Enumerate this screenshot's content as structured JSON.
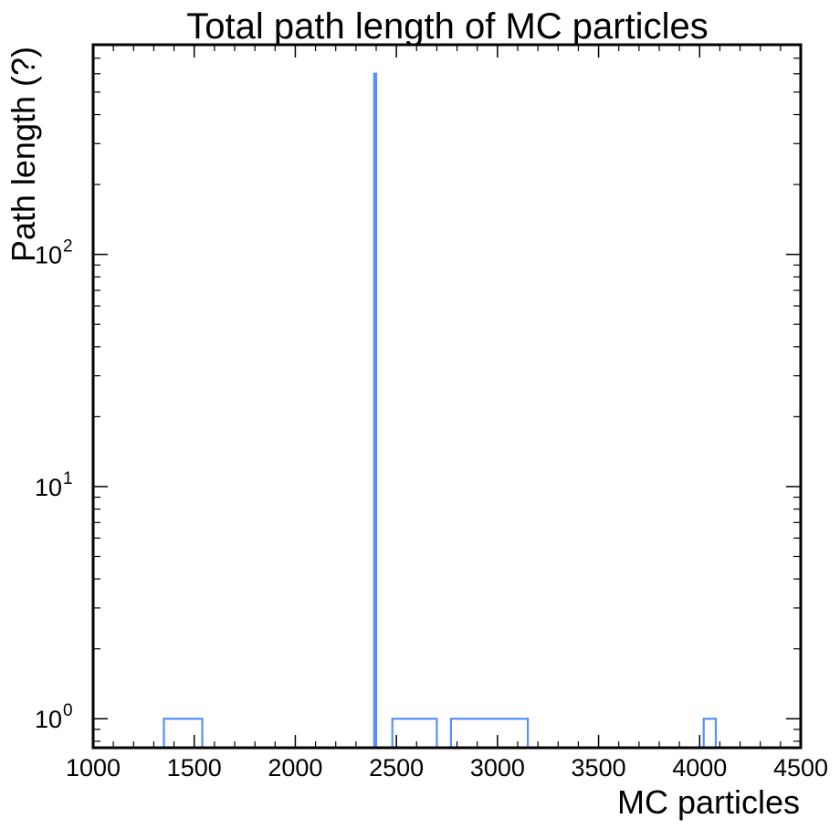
{
  "chart_data": {
    "type": "bar",
    "histogram_style": "step",
    "title": "Total path length of MC particles",
    "xlabel": "MC particles",
    "ylabel": "Path length (?)",
    "xlim": [
      1000,
      4500
    ],
    "ylim": [
      0.75,
      800
    ],
    "yscale": "log",
    "xticks": [
      1000,
      1500,
      2000,
      2500,
      3000,
      3500,
      4000,
      4500
    ],
    "yticks": [
      {
        "base": "10",
        "exp": "0",
        "value": 1
      },
      {
        "base": "10",
        "exp": "1",
        "value": 10
      },
      {
        "base": "10",
        "exp": "2",
        "value": 100
      }
    ],
    "bins": [
      {
        "x0": 1350,
        "x1": 1540,
        "value": 1
      },
      {
        "x0": 2390,
        "x1": 2400,
        "value": 600
      },
      {
        "x0": 2480,
        "x1": 2700,
        "value": 1
      },
      {
        "x0": 2770,
        "x1": 3150,
        "value": 1
      },
      {
        "x0": 4020,
        "x1": 4080,
        "value": 1
      }
    ],
    "color": "#5790fc",
    "grid": false,
    "legend": "none"
  }
}
